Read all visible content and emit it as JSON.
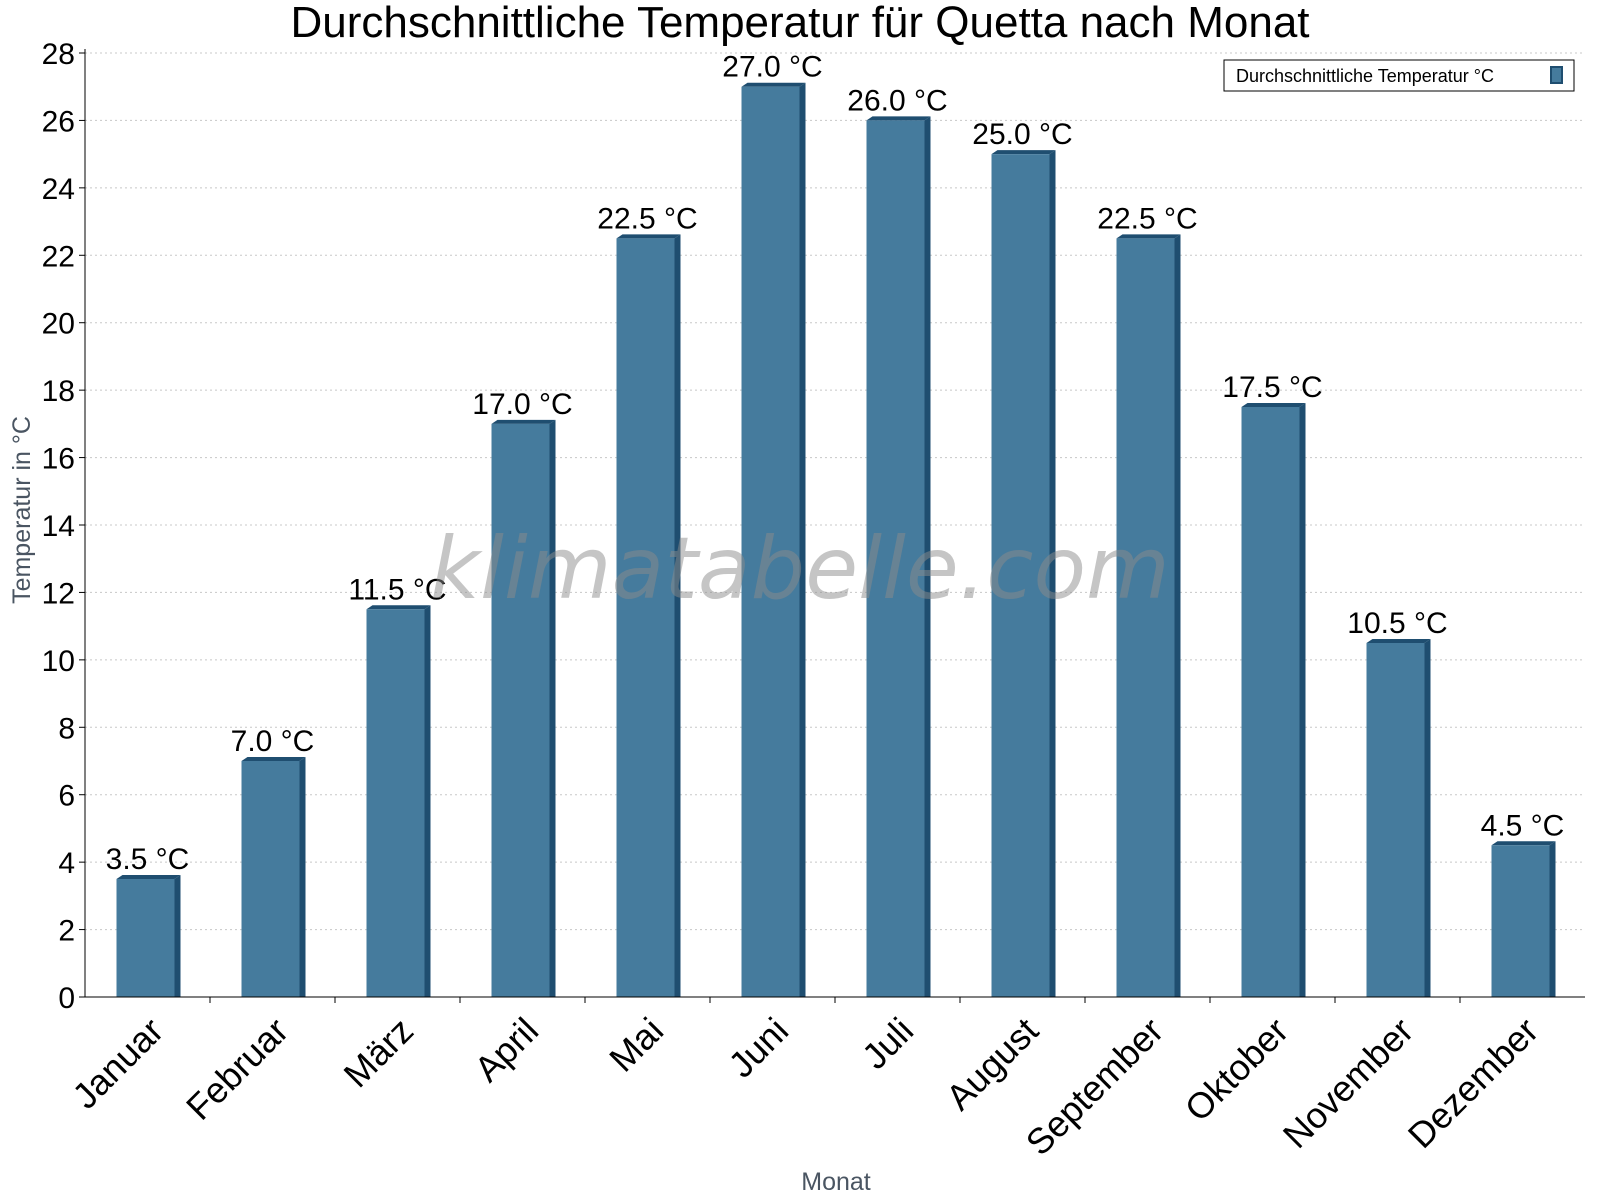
{
  "chart_data": {
    "type": "bar",
    "title": "Durchschnittliche Temperatur für Quetta nach Monat",
    "xlabel": "Monat",
    "ylabel": "Temperatur in °C",
    "categories": [
      "Januar",
      "Februar",
      "März",
      "April",
      "Mai",
      "Juni",
      "Juli",
      "August",
      "September",
      "Oktober",
      "November",
      "Dezember"
    ],
    "series": [
      {
        "name": "Durchschnittliche Temperatur °C",
        "values": [
          3.5,
          7.0,
          11.5,
          17.0,
          22.5,
          27.0,
          26.0,
          25.0,
          22.5,
          17.5,
          10.5,
          4.5
        ],
        "labels": [
          "3.5 °C",
          "7.0 °C",
          "11.5 °C",
          "17.0 °C",
          "22.5 °C",
          "27.0 °C",
          "26.0 °C",
          "25.0 °C",
          "22.5 °C",
          "17.5 °C",
          "10.5 °C",
          "4.5 °C"
        ]
      }
    ],
    "ylim": [
      0,
      28
    ],
    "yticks": [
      "0",
      "2",
      "4",
      "6",
      "8",
      "10",
      "12",
      "14",
      "16",
      "18",
      "20",
      "22",
      "24",
      "26",
      "28"
    ],
    "grid": true,
    "legend_position": "top-right",
    "colors": {
      "bar_front": "#457b9d",
      "bar_side": "#1f4e70",
      "grid": "#c8c8c8"
    }
  },
  "watermark": "klimatabelle.com"
}
